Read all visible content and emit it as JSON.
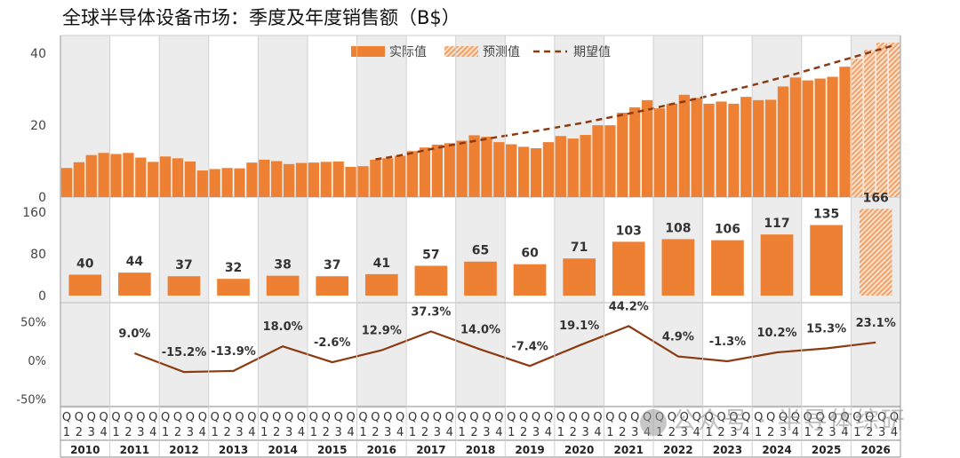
{
  "title": "全球半导体设备市场：季度及年度销售额（B$）",
  "watermark": "公众号 · 半导体综研",
  "colors": {
    "actual": "#ee8033",
    "forecast": "#f2a066",
    "expected_line": "#8b3a12",
    "growth_line": "#8b3a12",
    "band": "#ececec"
  },
  "chart_data": [
    {
      "type": "bar",
      "title": "",
      "legend_position": "top-center",
      "legend": [
        {
          "name": "实际值",
          "style": "solid"
        },
        {
          "name": "预测值",
          "style": "hatched"
        },
        {
          "name": "期望值",
          "style": "dashed-line"
        }
      ],
      "yticks": [
        "0",
        "20",
        "40"
      ],
      "ylim": [
        0,
        45
      ],
      "x_quarter_labels": [
        "Q1",
        "Q2",
        "Q3",
        "Q4"
      ],
      "years": [
        "2010",
        "2011",
        "2012",
        "2013",
        "2014",
        "2015",
        "2016",
        "2017",
        "2018",
        "2019",
        "2020",
        "2021",
        "2022",
        "2023",
        "2024",
        "2025",
        "2026"
      ],
      "series": [
        {
          "name": "实际值",
          "values": [
            8.1,
            9.7,
            11.7,
            12.3,
            12.0,
            12.3,
            11.0,
            9.8,
            11.3,
            10.8,
            9.9,
            7.4,
            7.8,
            8.1,
            8.0,
            9.6,
            10.4,
            10.0,
            9.2,
            9.5,
            9.6,
            9.8,
            9.9,
            8.4,
            8.6,
            10.4,
            10.8,
            11.5,
            12.8,
            13.8,
            14.6,
            15.0,
            15.7,
            17.2,
            16.8,
            15.3,
            14.7,
            14.0,
            13.6,
            15.3,
            17.0,
            16.3,
            17.3,
            20.0,
            20.0,
            23.5,
            25.0,
            27.0,
            24.7,
            26.0,
            28.5,
            27.6,
            26.0,
            26.6,
            26.0,
            27.9,
            27.0,
            27.1,
            30.8,
            33.3,
            32.5,
            33.0,
            33.5,
            36.3,
            null,
            null,
            null,
            null
          ]
        },
        {
          "name": "预测值",
          "values": [
            null,
            null,
            null,
            null,
            null,
            null,
            null,
            null,
            null,
            null,
            null,
            null,
            null,
            null,
            null,
            null,
            null,
            null,
            null,
            null,
            null,
            null,
            null,
            null,
            null,
            null,
            null,
            null,
            null,
            null,
            null,
            null,
            null,
            null,
            null,
            null,
            null,
            null,
            null,
            null,
            null,
            null,
            null,
            null,
            null,
            null,
            null,
            null,
            null,
            null,
            null,
            null,
            null,
            null,
            null,
            null,
            null,
            null,
            null,
            null,
            null,
            null,
            null,
            null,
            38.5,
            41.0,
            43.0,
            43.0
          ]
        },
        {
          "name": "期望值",
          "type": "line",
          "style": "dashed",
          "values": [
            null,
            null,
            null,
            null,
            null,
            null,
            null,
            null,
            null,
            null,
            null,
            null,
            null,
            null,
            null,
            null,
            null,
            null,
            null,
            null,
            null,
            null,
            null,
            null,
            null,
            10.5,
            11.0,
            11.6,
            12.3,
            13.0,
            13.7,
            14.4,
            15.0,
            15.6,
            16.2,
            16.8,
            17.3,
            17.9,
            18.4,
            19.0,
            19.6,
            20.2,
            20.8,
            21.5,
            22.2,
            22.9,
            23.6,
            24.3,
            25.1,
            25.9,
            26.6,
            27.4,
            28.2,
            29.0,
            29.9,
            30.7,
            31.6,
            32.5,
            33.4,
            34.3,
            35.3,
            36.3,
            37.3,
            38.3,
            39.3,
            40.3,
            41.3,
            42.3
          ]
        }
      ]
    },
    {
      "type": "bar",
      "title": "",
      "yticks": [
        "0",
        "80",
        "160"
      ],
      "ylim": [
        0,
        175
      ],
      "categories": [
        "2010",
        "2011",
        "2012",
        "2013",
        "2014",
        "2015",
        "2016",
        "2017",
        "2018",
        "2019",
        "2020",
        "2021",
        "2022",
        "2023",
        "2024",
        "2025",
        "2026"
      ],
      "values": [
        40,
        44,
        37,
        32,
        38,
        37,
        41,
        57,
        65,
        60,
        71,
        103,
        108,
        106,
        117,
        135,
        166
      ],
      "forecast_categories": [
        "2026"
      ]
    },
    {
      "type": "line",
      "title": "",
      "yticks": [
        "50%",
        "0%",
        "-50%"
      ],
      "ylim": [
        -60,
        70
      ],
      "categories": [
        "2011",
        "2012",
        "2013",
        "2014",
        "2015",
        "2016",
        "2017",
        "2018",
        "2019",
        "2020",
        "2021",
        "2022",
        "2023",
        "2024",
        "2025",
        "2026"
      ],
      "values": [
        9.0,
        -15.2,
        -13.9,
        18.0,
        -2.6,
        12.9,
        37.3,
        14.0,
        -7.4,
        19.1,
        44.2,
        4.9,
        -1.3,
        10.2,
        15.3,
        23.1
      ],
      "labels": [
        "9.0%",
        "-15.2%",
        "-13.9%",
        "18.0%",
        "-2.6%",
        "12.9%",
        "37.3%",
        "14.0%",
        "-7.4%",
        "19.1%",
        "44.2%",
        "4.9%",
        "-1.3%",
        "10.2%",
        "15.3%",
        "23.1%"
      ]
    }
  ]
}
